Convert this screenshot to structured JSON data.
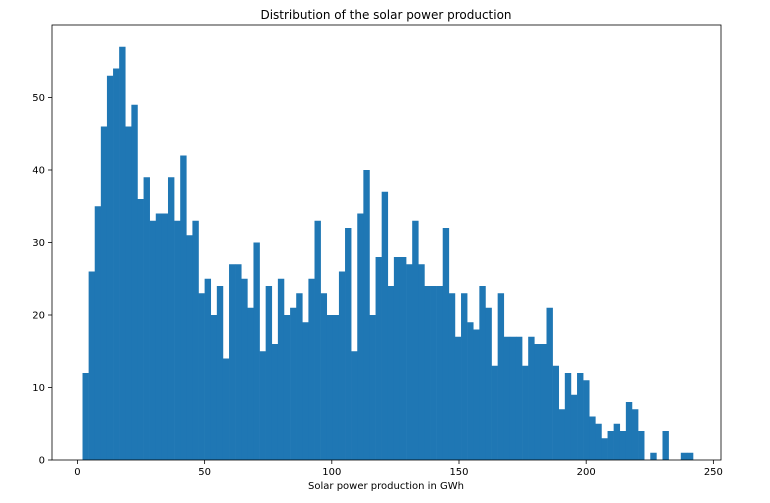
{
  "chart_data": {
    "type": "bar",
    "title": "Distribution of the solar power production",
    "xlabel": "Solar power production in GWh",
    "ylabel": "",
    "xlim": [
      -10,
      253
    ],
    "ylim": [
      0,
      60
    ],
    "xticks": [
      0,
      50,
      100,
      150,
      200,
      250
    ],
    "yticks": [
      0,
      10,
      20,
      30,
      40,
      50
    ],
    "grid": false,
    "bar_color": "#1f77b4",
    "bin_start": 2,
    "bin_width": 2.4,
    "values": [
      12,
      26,
      35,
      46,
      53,
      54,
      57,
      46,
      49,
      36,
      39,
      33,
      34,
      34,
      39,
      33,
      42,
      31,
      33,
      23,
      25,
      20,
      24,
      14,
      27,
      27,
      25,
      21,
      30,
      15,
      24,
      16,
      25,
      20,
      21,
      23,
      19,
      25,
      33,
      23,
      20,
      20,
      26,
      32,
      15,
      34,
      40,
      20,
      28,
      37,
      24,
      28,
      28,
      27,
      33,
      27,
      24,
      24,
      24,
      32,
      23,
      17,
      23,
      19,
      18,
      24,
      21,
      13,
      23,
      17,
      17,
      17,
      13,
      17,
      16,
      16,
      21,
      13,
      7,
      12,
      9,
      12,
      11,
      6,
      5,
      3,
      4,
      5,
      4,
      8,
      7,
      4,
      0,
      1,
      0,
      4,
      0,
      0,
      1,
      1
    ]
  }
}
